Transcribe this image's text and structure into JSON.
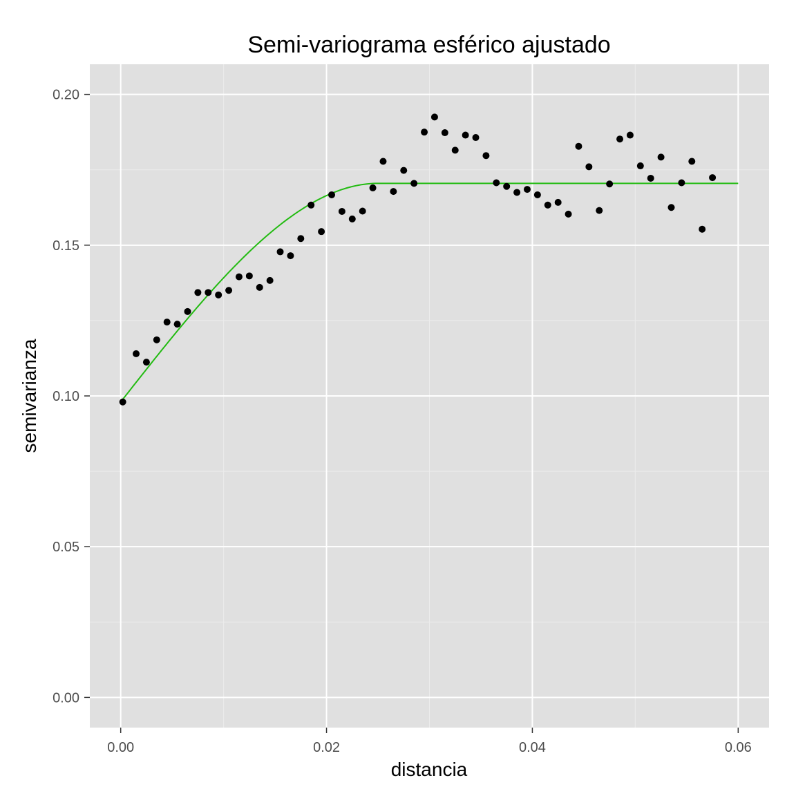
{
  "chart_data": {
    "type": "scatter",
    "title": "Semi-variograma esférico ajustado",
    "xlabel": "distancia",
    "ylabel": "semivarianza",
    "xlim": [
      -0.003,
      0.063
    ],
    "ylim": [
      -0.01,
      0.21
    ],
    "xticks": [
      0.0,
      0.02,
      0.04,
      0.06
    ],
    "xtick_labels": [
      "0.00",
      "0.02",
      "0.04",
      "0.06"
    ],
    "yticks": [
      0.0,
      0.05,
      0.1,
      0.15,
      0.2
    ],
    "ytick_labels": [
      "0.00",
      "0.05",
      "0.10",
      "0.15",
      "0.20"
    ],
    "grid": true,
    "colors": {
      "panel": "#e0e0e0",
      "grid_major": "#ffffff",
      "grid_minor": "#ececec",
      "points": "#000000",
      "fit_line": "#22bb11",
      "tick_label": "#4d4d4d"
    },
    "series": [
      {
        "kind": "points",
        "x": [
          0.0002,
          0.0015,
          0.0025,
          0.0035,
          0.0045,
          0.0055,
          0.0065,
          0.0075,
          0.0085,
          0.0095,
          0.0105,
          0.0115,
          0.0125,
          0.0135,
          0.0145,
          0.0155,
          0.0165,
          0.0175,
          0.0185,
          0.0195,
          0.0205,
          0.0215,
          0.0225,
          0.0235,
          0.0245,
          0.0255,
          0.0265,
          0.0275,
          0.0285,
          0.0295,
          0.0305,
          0.0315,
          0.0325,
          0.0335,
          0.0345,
          0.0355,
          0.0365,
          0.0375,
          0.0385,
          0.0395,
          0.0405,
          0.0415,
          0.0425,
          0.0435,
          0.0445,
          0.0455,
          0.0465,
          0.0475,
          0.0485,
          0.0495,
          0.0505,
          0.0515,
          0.0525,
          0.0535,
          0.0545,
          0.0555,
          0.0565,
          0.0575
        ],
        "y": [
          0.098,
          0.114,
          0.1112,
          0.1186,
          0.1245,
          0.1238,
          0.128,
          0.1343,
          0.1343,
          0.1335,
          0.135,
          0.1395,
          0.1398,
          0.136,
          0.1383,
          0.1478,
          0.1465,
          0.1522,
          0.1633,
          0.1545,
          0.1667,
          0.1612,
          0.1587,
          0.1613,
          0.169,
          0.1778,
          0.1678,
          0.1748,
          0.1705,
          0.1875,
          0.1925,
          0.1873,
          0.1815,
          0.1865,
          0.1857,
          0.1797,
          0.1707,
          0.1695,
          0.1675,
          0.1685,
          0.1667,
          0.1633,
          0.1642,
          0.1603,
          0.1828,
          0.176,
          0.1615,
          0.1703,
          0.1852,
          0.1865,
          0.1763,
          0.1722,
          0.1792,
          0.1625,
          0.1707,
          0.1778,
          0.1553,
          0.1724
        ]
      },
      {
        "kind": "fit",
        "model": "spherical",
        "nugget": 0.098,
        "sill": 0.1705,
        "range": 0.025,
        "x_from": 0.0002,
        "x_to": 0.06
      }
    ]
  }
}
